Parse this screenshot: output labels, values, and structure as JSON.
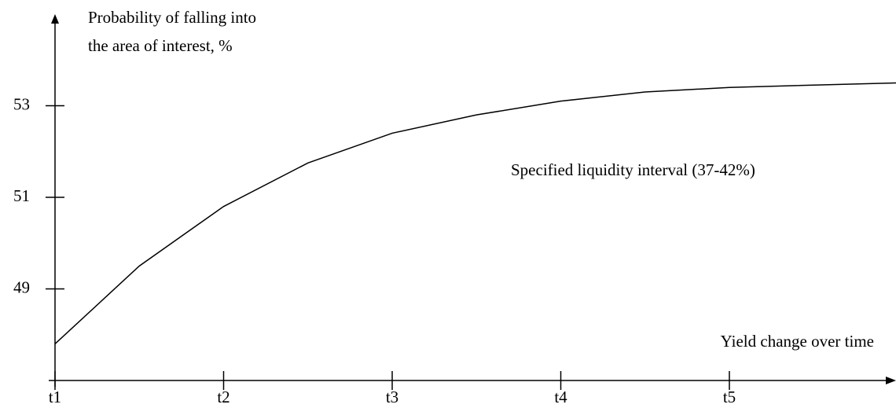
{
  "chart_data": {
    "type": "line",
    "y_label": [
      "Probability of falling into",
      "the area of interest, %"
    ],
    "x_label": "Yield change over time",
    "annotation": "Specified liquidity interval (37-42%)",
    "x": [
      1,
      1.5,
      2,
      2.5,
      3,
      3.5,
      4,
      4.5,
      5,
      6
    ],
    "series": [
      {
        "color": "#000000",
        "values": [
          47.8,
          49.5,
          50.8,
          51.75,
          52.4,
          52.8,
          53.1,
          53.3,
          53.4,
          53.5
        ]
      }
    ],
    "xlim": [
      1,
      6
    ],
    "xticks": [
      {
        "value": 1,
        "label": "t1"
      },
      {
        "value": 2,
        "label": "t2"
      },
      {
        "value": 3,
        "label": "t3"
      },
      {
        "value": 4,
        "label": "t4"
      },
      {
        "value": 5,
        "label": "t5"
      }
    ],
    "ylim": [
      47,
      55
    ],
    "yticks": [
      49,
      51,
      53
    ]
  }
}
